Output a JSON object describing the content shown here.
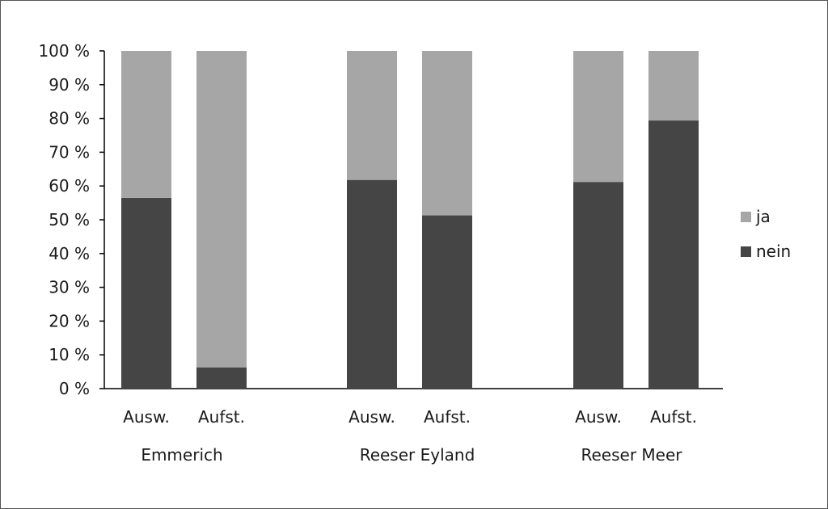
{
  "chart_data": {
    "type": "bar",
    "stacked": true,
    "title": "",
    "xlabel": "",
    "ylabel": "",
    "ylim": [
      0,
      100
    ],
    "y_ticks": [
      "0 %",
      "10 %",
      "20 %",
      "30 %",
      "40 %",
      "50 %",
      "60 %",
      "70 %",
      "80 %",
      "90 %",
      "100 %"
    ],
    "groups": [
      "Emmerich",
      "Reeser Eyland",
      "Reeser Meer"
    ],
    "categories": [
      "Ausw.",
      "Aufst.",
      "Ausw.",
      "Aufst.",
      "Ausw.",
      "Aufst."
    ],
    "series": [
      {
        "name": "nein",
        "color": "#454545",
        "values": [
          56.5,
          6.3,
          61.8,
          51.3,
          61.2,
          79.4
        ]
      },
      {
        "name": "ja",
        "color": "#a6a6a6",
        "values": [
          43.5,
          93.7,
          38.2,
          48.7,
          38.8,
          20.6
        ]
      }
    ],
    "legend_order": [
      "ja",
      "nein"
    ],
    "legend_position": "right",
    "grid": false
  }
}
